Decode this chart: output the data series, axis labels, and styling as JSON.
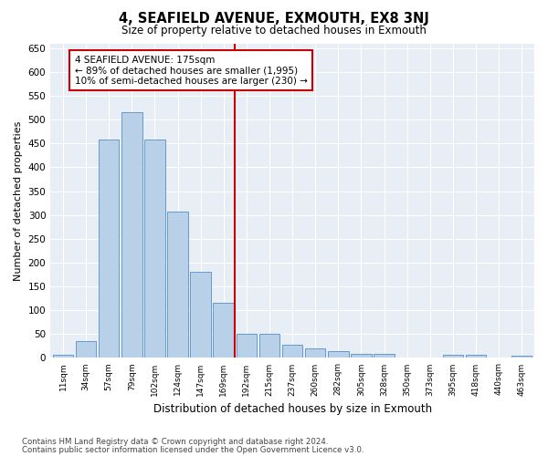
{
  "title": "4, SEAFIELD AVENUE, EXMOUTH, EX8 3NJ",
  "subtitle": "Size of property relative to detached houses in Exmouth",
  "xlabel": "Distribution of detached houses by size in Exmouth",
  "ylabel": "Number of detached properties",
  "categories": [
    "11sqm",
    "34sqm",
    "57sqm",
    "79sqm",
    "102sqm",
    "124sqm",
    "147sqm",
    "169sqm",
    "192sqm",
    "215sqm",
    "237sqm",
    "260sqm",
    "282sqm",
    "305sqm",
    "328sqm",
    "350sqm",
    "373sqm",
    "395sqm",
    "418sqm",
    "440sqm",
    "463sqm"
  ],
  "values": [
    7,
    35,
    458,
    515,
    458,
    307,
    180,
    115,
    50,
    50,
    27,
    20,
    14,
    9,
    9,
    0,
    0,
    7,
    7,
    0,
    4
  ],
  "bar_color": "#b8d0e8",
  "bar_edge_color": "#6699cc",
  "reference_line_color": "#cc0000",
  "annotation_title": "4 SEAFIELD AVENUE: 175sqm",
  "annotation_line1": "← 89% of detached houses are smaller (1,995)",
  "annotation_line2": "10% of semi-detached houses are larger (230) →",
  "annotation_box_edge_color": "#cc0000",
  "ylim": [
    0,
    660
  ],
  "yticks": [
    0,
    50,
    100,
    150,
    200,
    250,
    300,
    350,
    400,
    450,
    500,
    550,
    600,
    650
  ],
  "footer1": "Contains HM Land Registry data © Crown copyright and database right 2024.",
  "footer2": "Contains public sector information licensed under the Open Government Licence v3.0.",
  "fig_background": "#ffffff",
  "plot_background": "#e8eef5"
}
